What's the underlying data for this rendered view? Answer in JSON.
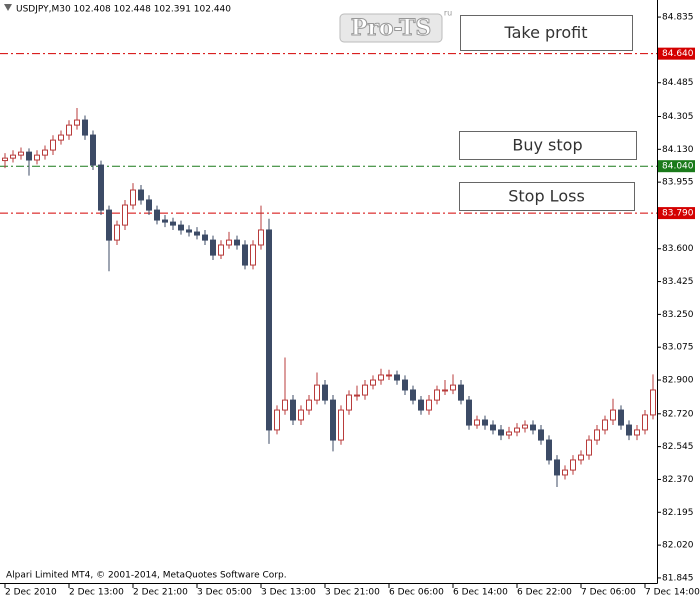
{
  "chart_data": {
    "type": "candlestick",
    "symbol_info": "USDJPY,M30  102.408 102.448 102.391 102.440",
    "footer": "Alpari Limited MT4, © 2001-2014, MetaQuotes Software Corp.",
    "watermark": "Pro-TS",
    "watermark_sup": "ru",
    "up_color": "#b83b3b",
    "down_color": "#3c4b66",
    "categories": [
      "2 Dec 2010",
      null,
      null,
      null,
      null,
      null,
      null,
      null,
      "2 Dec 13:00",
      null,
      null,
      null,
      null,
      null,
      null,
      null,
      "2 Dec 21:00",
      null,
      null,
      null,
      null,
      null,
      null,
      null,
      "3 Dec 05:00",
      null,
      null,
      null,
      null,
      null,
      null,
      null,
      "3 Dec 13:00",
      null,
      null,
      null,
      null,
      null,
      null,
      null,
      "3 Dec 21:00",
      null,
      null,
      null,
      null,
      null,
      null,
      null,
      "6 Dec 06:00",
      null,
      null,
      null,
      null,
      null,
      null,
      null,
      "6 Dec 14:00",
      null,
      null,
      null,
      null,
      null,
      null,
      null,
      "6 Dec 22:00",
      null,
      null,
      null,
      null,
      null,
      null,
      null,
      "7 Dec 06:00",
      null,
      null,
      null,
      null,
      null,
      null,
      null,
      "7 Dec 14:00",
      null
    ],
    "values": [
      [
        84.07,
        84.11,
        84.03,
        84.083
      ],
      [
        84.083,
        84.125,
        84.06,
        84.099
      ],
      [
        84.099,
        84.14,
        84.075,
        84.115
      ],
      [
        84.115,
        84.135,
        83.99,
        84.073
      ],
      [
        84.073,
        84.125,
        84.05,
        84.099
      ],
      [
        84.099,
        84.15,
        84.075,
        84.126
      ],
      [
        84.126,
        84.205,
        84.1,
        84.179
      ],
      [
        84.179,
        84.23,
        84.155,
        84.206
      ],
      [
        84.206,
        84.285,
        84.18,
        84.259
      ],
      [
        84.259,
        84.35,
        84.235,
        84.286
      ],
      [
        84.286,
        84.31,
        84.18,
        84.206
      ],
      [
        84.206,
        84.23,
        84.02,
        84.046
      ],
      [
        84.046,
        84.07,
        83.78,
        83.806
      ],
      [
        83.806,
        83.83,
        83.48,
        83.646
      ],
      [
        83.646,
        83.75,
        83.62,
        83.726
      ],
      [
        83.726,
        83.86,
        83.7,
        83.833
      ],
      [
        83.833,
        83.95,
        83.81,
        83.913
      ],
      [
        83.913,
        83.94,
        83.835,
        83.86
      ],
      [
        83.86,
        83.885,
        83.78,
        83.806
      ],
      [
        83.806,
        83.83,
        83.73,
        83.753
      ],
      [
        83.753,
        83.78,
        83.715,
        83.742
      ],
      [
        83.742,
        83.765,
        83.7,
        83.726
      ],
      [
        83.726,
        83.75,
        83.675,
        83.7
      ],
      [
        83.7,
        83.725,
        83.665,
        83.689
      ],
      [
        83.689,
        83.715,
        83.65,
        83.673
      ],
      [
        83.673,
        83.7,
        83.62,
        83.646
      ],
      [
        83.646,
        83.67,
        83.54,
        83.566
      ],
      [
        83.566,
        83.645,
        83.545,
        83.62
      ],
      [
        83.62,
        83.69,
        83.6,
        83.646
      ],
      [
        83.646,
        83.67,
        83.595,
        83.62
      ],
      [
        83.62,
        83.645,
        83.49,
        83.513
      ],
      [
        83.513,
        83.645,
        83.49,
        83.62
      ],
      [
        83.62,
        83.83,
        83.595,
        83.7
      ],
      [
        83.7,
        83.76,
        82.56,
        82.634
      ],
      [
        82.634,
        82.765,
        82.61,
        82.74
      ],
      [
        82.74,
        83.02,
        82.715,
        82.793
      ],
      [
        82.793,
        82.82,
        82.66,
        82.687
      ],
      [
        82.687,
        82.765,
        82.66,
        82.74
      ],
      [
        82.74,
        82.82,
        82.715,
        82.793
      ],
      [
        82.793,
        82.94,
        82.77,
        82.873
      ],
      [
        82.873,
        82.9,
        82.77,
        82.793
      ],
      [
        82.793,
        82.82,
        82.52,
        82.58
      ],
      [
        82.58,
        82.765,
        82.555,
        82.74
      ],
      [
        82.74,
        82.845,
        82.715,
        82.82
      ],
      [
        82.82,
        82.87,
        82.79,
        82.82
      ],
      [
        82.82,
        82.9,
        82.795,
        82.873
      ],
      [
        82.873,
        82.925,
        82.85,
        82.9
      ],
      [
        82.9,
        82.96,
        82.875,
        82.927
      ],
      [
        82.927,
        82.955,
        82.9,
        82.927
      ],
      [
        82.927,
        82.95,
        82.875,
        82.9
      ],
      [
        82.9,
        82.925,
        82.82,
        82.847
      ],
      [
        82.847,
        82.87,
        82.77,
        82.793
      ],
      [
        82.793,
        82.815,
        82.715,
        82.74
      ],
      [
        82.74,
        82.82,
        82.715,
        82.793
      ],
      [
        82.793,
        82.87,
        82.77,
        82.847
      ],
      [
        82.847,
        82.9,
        82.82,
        82.847
      ],
      [
        82.847,
        82.93,
        82.825,
        82.873
      ],
      [
        82.873,
        82.9,
        82.77,
        82.793
      ],
      [
        82.793,
        82.815,
        82.635,
        82.66
      ],
      [
        82.66,
        82.71,
        82.64,
        82.687
      ],
      [
        82.687,
        82.71,
        82.635,
        82.66
      ],
      [
        82.66,
        82.685,
        82.61,
        82.634
      ],
      [
        82.634,
        82.66,
        82.58,
        82.607
      ],
      [
        82.607,
        82.65,
        82.585,
        82.623
      ],
      [
        82.623,
        82.67,
        82.6,
        82.644
      ],
      [
        82.644,
        82.685,
        82.62,
        82.66
      ],
      [
        82.66,
        82.685,
        82.61,
        82.634
      ],
      [
        82.634,
        82.66,
        82.555,
        82.58
      ],
      [
        82.58,
        82.605,
        82.45,
        82.474
      ],
      [
        82.474,
        82.5,
        82.33,
        82.394
      ],
      [
        82.394,
        82.445,
        82.37,
        82.42
      ],
      [
        82.42,
        82.5,
        82.395,
        82.474
      ],
      [
        82.474,
        82.525,
        82.45,
        82.5
      ],
      [
        82.5,
        82.605,
        82.475,
        82.58
      ],
      [
        82.58,
        82.66,
        82.555,
        82.634
      ],
      [
        82.634,
        82.71,
        82.61,
        82.687
      ],
      [
        82.687,
        82.8,
        82.66,
        82.74
      ],
      [
        82.74,
        82.765,
        82.635,
        82.66
      ],
      [
        82.66,
        82.685,
        82.58,
        82.607
      ],
      [
        82.607,
        82.66,
        82.58,
        82.634
      ],
      [
        82.634,
        82.74,
        82.61,
        82.714
      ],
      [
        82.714,
        82.93,
        82.69,
        82.847
      ]
    ],
    "ylim": [
      81.818,
      84.926
    ],
    "yticks": [
      84.835,
      84.485,
      84.305,
      {
        "value": 84.13,
        "label": "84.130"
      },
      83.955,
      {
        "value": 83.6,
        "label": "83.600"
      },
      83.425,
      {
        "value": 83.25,
        "label": "83.250"
      },
      83.075,
      {
        "value": 82.9,
        "label": "82.900"
      },
      {
        "value": 82.72,
        "label": "82.720"
      },
      82.545,
      {
        "value": 82.37,
        "label": "82.370"
      },
      82.195,
      {
        "value": 82.02,
        "label": "82.020"
      },
      81.845
    ],
    "levels": [
      {
        "name": "Take profit",
        "value": 84.64,
        "label": "84.640",
        "color": "#d40000"
      },
      {
        "name": "Buy stop",
        "value": 84.04,
        "label": "84.040",
        "color": "#1a7a1a"
      },
      {
        "name": "Stop Loss",
        "value": 83.79,
        "label": "83.790",
        "color": "#d40000"
      }
    ]
  }
}
